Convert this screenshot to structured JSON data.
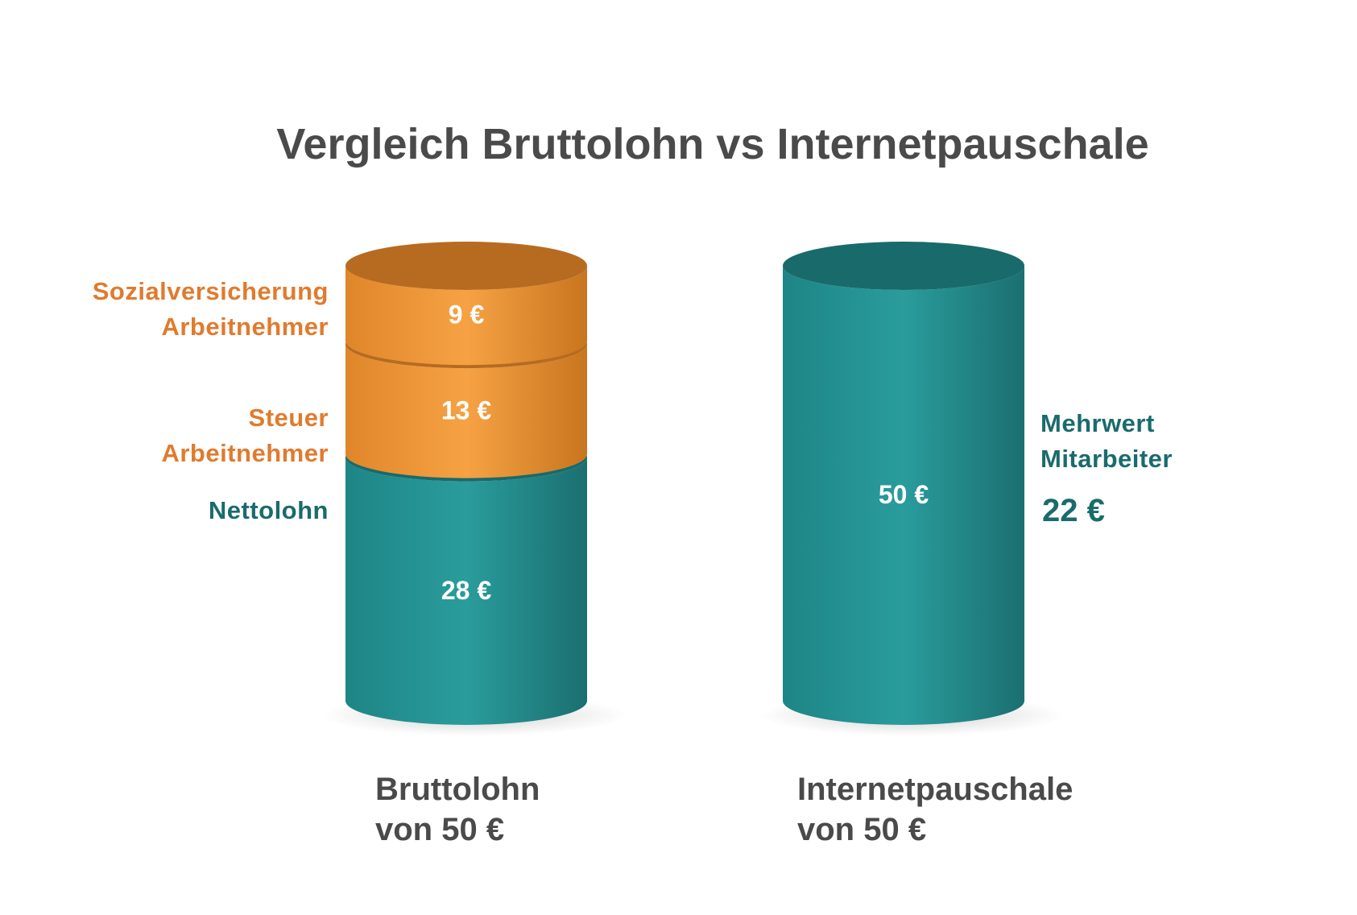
{
  "colors": {
    "orange": "#f0922f",
    "orange_dark": "#b76b20",
    "teal": "#208d8e",
    "teal_dark": "#196a6b",
    "label_orange": "#e07b2e",
    "label_teal": "#1a6b6d",
    "text_gray": "#4a4a4a"
  },
  "chart_data": {
    "type": "bar",
    "title": "Vergleich Bruttolohn vs Internetpauschale",
    "categories": [
      "Bruttolohn von 50 €",
      "Internetpauschale von 50 €"
    ],
    "stacked": true,
    "series": [
      {
        "name": "Nettolohn",
        "values": [
          28,
          0
        ],
        "value_labels": [
          "28 €",
          ""
        ]
      },
      {
        "name": "Steuer Arbeitnehmer",
        "values": [
          13,
          0
        ],
        "value_labels": [
          "13 €",
          ""
        ]
      },
      {
        "name": "Sozialversicherung Arbeitnehmer",
        "values": [
          9,
          0
        ],
        "value_labels": [
          "9 €",
          ""
        ]
      },
      {
        "name": "Internetpauschale",
        "values": [
          0,
          50
        ],
        "value_labels": [
          "",
          "50 €"
        ]
      }
    ],
    "annotation": {
      "line1": "Mehrwert",
      "line2": "Mitarbeiter",
      "value": "22 €"
    }
  },
  "labels": {
    "sozial_line1": "Sozialversicherung",
    "sozial_line2": "Arbeitnehmer",
    "steuer_line1": "Steuer",
    "steuer_line2": "Arbeitnehmer",
    "netto": "Nettolohn"
  },
  "captions": {
    "left_line1": "Bruttolohn",
    "left_line2": "von 50 €",
    "right_line1": "Internetpauschale",
    "right_line2": "von 50 €"
  }
}
